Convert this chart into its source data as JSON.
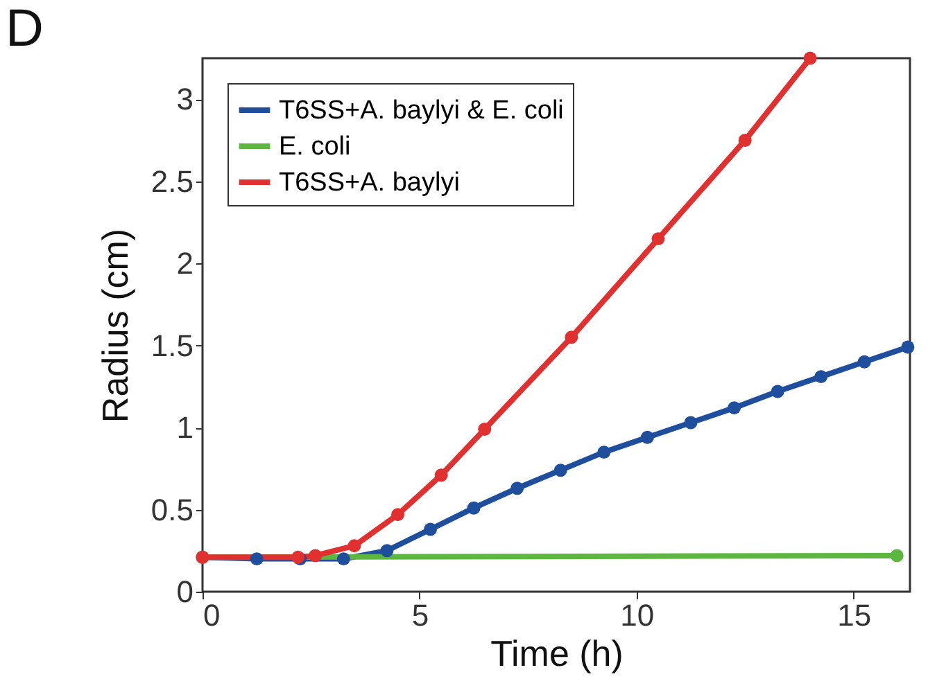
{
  "chart_data": {
    "type": "line",
    "xlabel": "Time (h)",
    "ylabel": "Radius (cm)",
    "annotations": [
      "D"
    ],
    "xlim": [
      0,
      16.3
    ],
    "xticks": [
      0,
      5,
      10,
      15
    ],
    "ylim": [
      0,
      3.25
    ],
    "yticks": [
      0,
      0.5,
      1,
      1.5,
      2,
      2.5,
      3
    ],
    "grid": false,
    "legend": "top left",
    "marker": "circle",
    "line_style": "solid",
    "series": [
      {
        "name": "T6SS+A. baylyi & E. coli",
        "color": "#1f4e9c",
        "x": [
          0,
          1.25,
          2.25,
          3.25,
          4.25,
          5.25,
          6.25,
          7.25,
          8.25,
          9.25,
          10.25,
          11.25,
          12.25,
          13.25,
          14.25,
          15.25,
          16.25
        ],
        "values": [
          0.21,
          0.2,
          0.2,
          0.2,
          0.25,
          0.38,
          0.51,
          0.63,
          0.74,
          0.85,
          0.94,
          1.03,
          1.12,
          1.22,
          1.31,
          1.4,
          1.49
        ]
      },
      {
        "name": "E. coli",
        "color": "#5cb63f",
        "x": [
          0,
          16
        ],
        "values": [
          0.21,
          0.22
        ]
      },
      {
        "name": "T6SS+A. baylyi",
        "color": "#e03030",
        "x": [
          0,
          2.2,
          2.6,
          3.5,
          4.5,
          5.5,
          6.5,
          8.5,
          10.5,
          12.5,
          14
        ],
        "values": [
          0.21,
          0.21,
          0.22,
          0.28,
          0.47,
          0.71,
          0.99,
          1.55,
          2.15,
          2.75,
          3.25
        ]
      }
    ]
  }
}
